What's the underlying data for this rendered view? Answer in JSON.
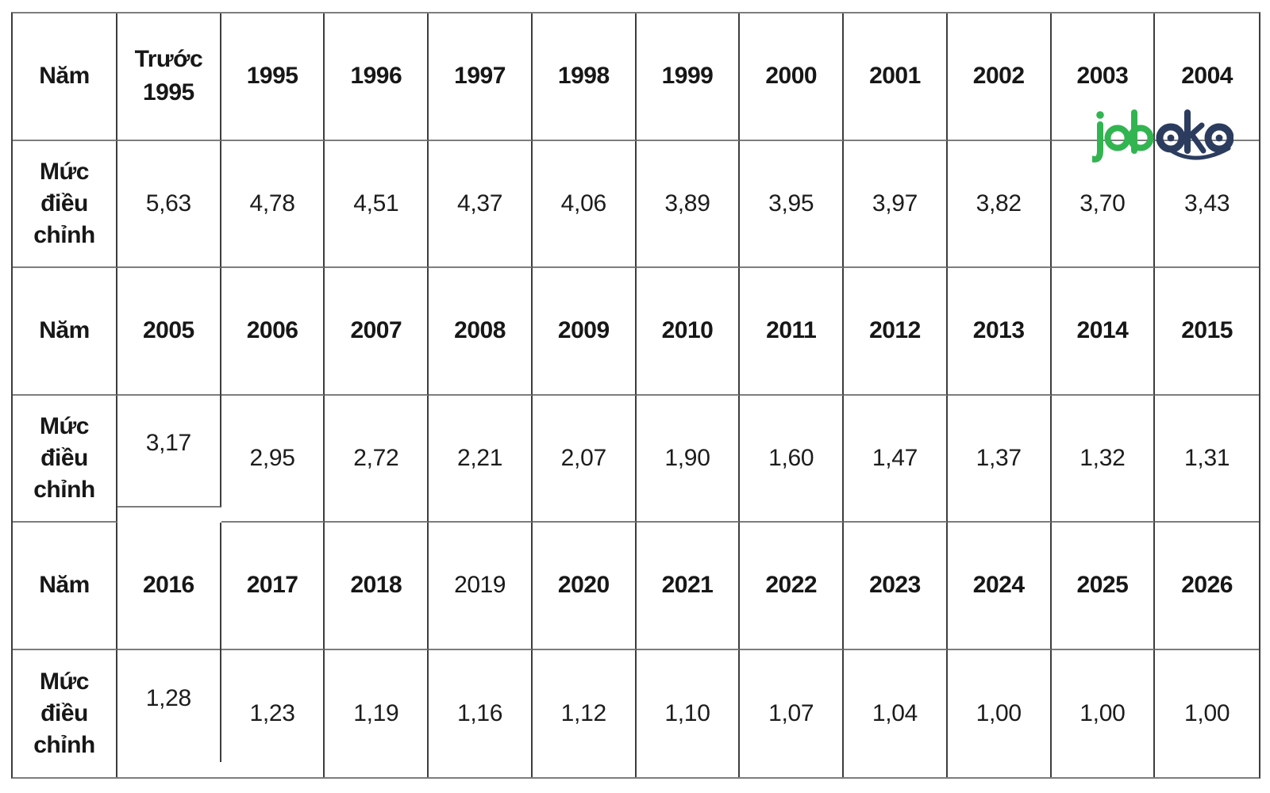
{
  "page": {
    "background": "#ffffff"
  },
  "logo": {
    "brand": "joboko",
    "text_green": "job",
    "text_navy": "oko",
    "green": "#32b451",
    "navy": "#2b3c5e"
  },
  "table": {
    "year_label": "Năm",
    "adjustment_label": "Mức điều chỉnh",
    "sections": [
      {
        "years": [
          "Trước 1995",
          "1995",
          "1996",
          "1997",
          "1998",
          "1999",
          "2000",
          "2001",
          "2002",
          "2003",
          "2004"
        ],
        "values": [
          "5,63",
          "4,78",
          "4,51",
          "4,37",
          "4,06",
          "3,89",
          "3,95",
          "3,97",
          "3,82",
          "3,70",
          "3,43"
        ]
      },
      {
        "years": [
          "2005",
          "2006",
          "2007",
          "2008",
          "2009",
          "2010",
          "2011",
          "2012",
          "2013",
          "2014",
          "2015"
        ],
        "values": [
          "3,17",
          "2,95",
          "2,72",
          "2,21",
          "2,07",
          "1,90",
          "1,60",
          "1,47",
          "1,37",
          "1,32",
          "1,31"
        ]
      },
      {
        "years": [
          "2016",
          "2017",
          "2018",
          "2019",
          "2020",
          "2021",
          "2022",
          "2023",
          "2024",
          "2025",
          "2026"
        ],
        "values": [
          "1,28",
          "1,23",
          "1,19",
          "1,16",
          "1,12",
          "1,10",
          "1,07",
          "1,04",
          "1,00",
          "1,00",
          "1,00"
        ]
      }
    ],
    "styles": {
      "normal_weight_years": [
        "2019"
      ],
      "raised_value_cells": [
        [
          1,
          0
        ],
        [
          2,
          0
        ]
      ],
      "horizontal_border_color": "#7d7d7d",
      "vertical_border_color": "#3d3d3d",
      "text_color": "#171717"
    }
  }
}
